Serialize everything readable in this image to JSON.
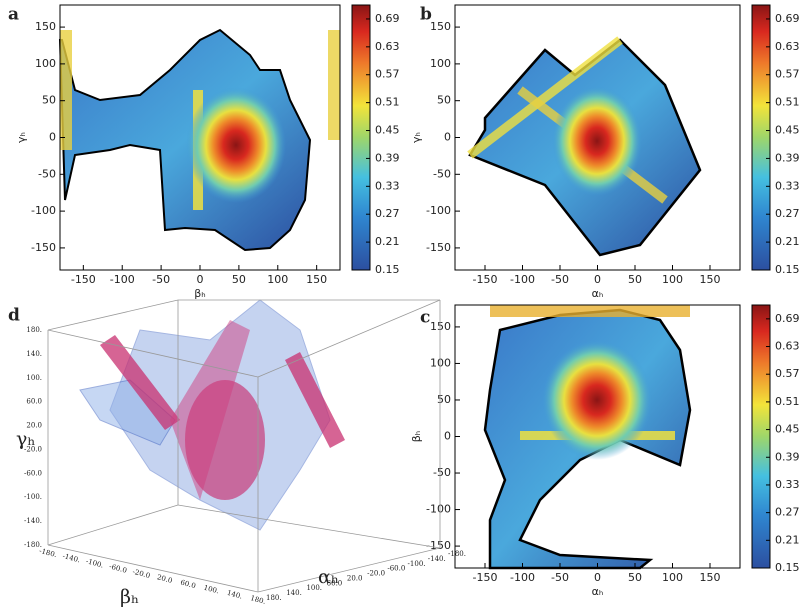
{
  "chart_data": [
    {
      "type": "contour",
      "panel": "a",
      "xlabel": "βₕ",
      "ylabel": "γₕ",
      "xlim": [
        -180,
        180
      ],
      "xticks": [
        -150,
        -100,
        -50,
        0,
        50,
        100,
        150
      ],
      "ylim": [
        -180,
        180
      ],
      "yticks": [
        -150,
        -100,
        -50,
        0,
        50,
        100,
        150
      ],
      "clim": [
        0.15,
        0.72
      ],
      "cticks": [
        0.15,
        0.21,
        0.27,
        0.33,
        0.39,
        0.45,
        0.51,
        0.57,
        0.63,
        0.69
      ]
    },
    {
      "type": "contour",
      "panel": "b",
      "xlabel": "αₕ",
      "ylabel": "γₕ",
      "xlim": [
        -190,
        190
      ],
      "xticks": [
        -150,
        -100,
        -50,
        0,
        50,
        100,
        150
      ],
      "ylim": [
        -180,
        180
      ],
      "yticks": [
        -150,
        -100,
        -50,
        0,
        50,
        100,
        150
      ],
      "clim": [
        0.15,
        0.72
      ],
      "cticks": [
        0.15,
        0.21,
        0.27,
        0.33,
        0.39,
        0.45,
        0.51,
        0.57,
        0.63,
        0.69
      ]
    },
    {
      "type": "contour",
      "panel": "c",
      "xlabel": "αₕ",
      "ylabel": "βₕ",
      "xlim": [
        -190,
        190
      ],
      "xticks": [
        -150,
        -100,
        -50,
        0,
        50,
        100,
        150
      ],
      "ylim": [
        -180,
        180
      ],
      "yticks": [
        -150,
        -100,
        -50,
        0,
        50,
        100,
        150
      ],
      "clim": [
        0.15,
        0.72
      ],
      "cticks": [
        0.15,
        0.21,
        0.27,
        0.33,
        0.39,
        0.45,
        0.51,
        0.57,
        0.63,
        0.69
      ]
    },
    {
      "type": "volume",
      "panel": "d",
      "xlabel": "βₕ",
      "ylabel": "αₕ",
      "zlabel": "γₕ",
      "xlim": [
        -180,
        180
      ],
      "ylim": [
        -180,
        180
      ],
      "zlim": [
        -180,
        180
      ],
      "xticks": [
        {
          "value": -180,
          "label": "-180."
        },
        {
          "value": -140,
          "label": "-140."
        },
        {
          "value": -100,
          "label": "-100."
        },
        {
          "value": -60,
          "label": "-60.0"
        },
        {
          "value": -20,
          "label": "-20.0"
        },
        {
          "value": 20,
          "label": "20.0"
        },
        {
          "value": 60,
          "label": "60.0"
        },
        {
          "value": 100,
          "label": "100."
        },
        {
          "value": 140,
          "label": "140."
        },
        {
          "value": 180,
          "label": "180."
        }
      ],
      "yticks": [
        {
          "value": -180,
          "label": "-180."
        },
        {
          "value": -140,
          "label": "-140."
        },
        {
          "value": -100,
          "label": "-100."
        },
        {
          "value": -60,
          "label": "-60.0"
        },
        {
          "value": -20,
          "label": "-20.0"
        },
        {
          "value": 20,
          "label": "20.0"
        },
        {
          "value": 60,
          "label": "60.0"
        },
        {
          "value": 100,
          "label": "100."
        },
        {
          "value": 140,
          "label": "140."
        },
        {
          "value": 180,
          "label": "180."
        }
      ],
      "zticks": [
        {
          "value": 180,
          "label": "180."
        },
        {
          "value": 140,
          "label": "140."
        },
        {
          "value": 100,
          "label": "100."
        },
        {
          "value": 60,
          "label": "60.0"
        },
        {
          "value": 20,
          "label": "20.0"
        },
        {
          "value": -20,
          "label": "-20.0"
        },
        {
          "value": -60,
          "label": "-60.0"
        },
        {
          "value": -100,
          "label": "-100."
        },
        {
          "value": -140,
          "label": "-140."
        },
        {
          "value": -180,
          "label": "-180."
        }
      ]
    }
  ]
}
